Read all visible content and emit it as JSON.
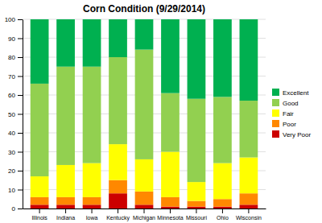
{
  "chart_data": {
    "type": "bar",
    "stacked": true,
    "title": "Corn Condition (9/29/2014)",
    "categories": [
      "Illinois",
      "Indiana",
      "Iowa",
      "Kentucky",
      "Michigan",
      "Minnesota",
      "Missouri",
      "Ohio",
      "Wisconsin"
    ],
    "series": [
      {
        "name": "Very Poor",
        "color": "#cc0000",
        "values": [
          2,
          2,
          2,
          8,
          2,
          1,
          1,
          1,
          2
        ]
      },
      {
        "name": "Poor",
        "color": "#ff8800",
        "values": [
          4,
          4,
          4,
          7,
          7,
          5,
          3,
          4,
          6
        ]
      },
      {
        "name": "Fair",
        "color": "#ffff00",
        "values": [
          11,
          17,
          18,
          19,
          17,
          24,
          10,
          19,
          19
        ]
      },
      {
        "name": "Good",
        "color": "#92d050",
        "values": [
          49,
          52,
          51,
          46,
          58,
          31,
          44,
          35,
          30
        ]
      },
      {
        "name": "Excellent",
        "color": "#00b050",
        "values": [
          34,
          25,
          25,
          20,
          16,
          39,
          42,
          41,
          43
        ]
      }
    ],
    "ylim": [
      0,
      100
    ],
    "yticks": [
      0,
      10,
      20,
      30,
      40,
      50,
      60,
      70,
      80,
      90,
      100
    ],
    "grid": true,
    "legend": "right"
  }
}
